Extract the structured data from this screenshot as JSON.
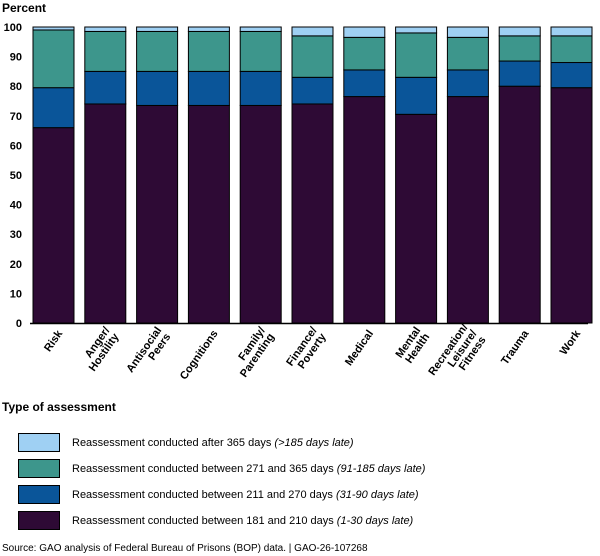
{
  "chart_data": {
    "type": "bar",
    "stacked": true,
    "ylabel": "Percent",
    "xlabel": "Type of assessment",
    "ylim": [
      0,
      100
    ],
    "yticks": [
      0,
      10,
      20,
      30,
      40,
      50,
      60,
      70,
      80,
      90,
      100
    ],
    "categories": [
      [
        "Risk"
      ],
      [
        "Anger/",
        "Hostility"
      ],
      [
        "Antisocial",
        "Peers"
      ],
      [
        "Cognitions"
      ],
      [
        "Family/",
        "Parenting"
      ],
      [
        "Finance/",
        "Poverty"
      ],
      [
        "Medical"
      ],
      [
        "Mental",
        "Health"
      ],
      [
        "Recreation/",
        "Leisure/",
        "Fitness"
      ],
      [
        "Trauma"
      ],
      [
        "Work"
      ]
    ],
    "series": [
      {
        "name": "Reassessment conducted between 181 and 210 days",
        "note": "(1-30 days late)",
        "color": "#2e0a35",
        "values": [
          66,
          74,
          73.5,
          73.5,
          73.5,
          74,
          76.5,
          70.5,
          76.5,
          80,
          79.5
        ]
      },
      {
        "name": "Reassessment conducted between 211 and 270 days",
        "note": "(31-90 days late)",
        "color": "#0a5599",
        "values": [
          13.5,
          11,
          11.5,
          11.5,
          11.5,
          9,
          9,
          12.5,
          9,
          8.5,
          8.5
        ]
      },
      {
        "name": "Reassessment conducted between 271 and 365 days",
        "note": "(91-185 days late)",
        "color": "#3d968c",
        "values": [
          19.5,
          13.5,
          13.5,
          13.5,
          13.5,
          14,
          11,
          15,
          11,
          8.5,
          9
        ]
      },
      {
        "name": "Reassessment conducted after 365 days",
        "note": "(>185 days late)",
        "color": "#9fd0f3",
        "values": [
          1,
          1.5,
          1.5,
          1.5,
          1.5,
          3,
          3.5,
          2,
          3.5,
          3,
          3
        ]
      }
    ],
    "legend_order": [
      3,
      2,
      1,
      0
    ],
    "grid": false,
    "legend_position": "bottom"
  },
  "source": "Source: GAO analysis of Federal Bureau of Prisons (BOP) data.  |  GAO-26-107268"
}
